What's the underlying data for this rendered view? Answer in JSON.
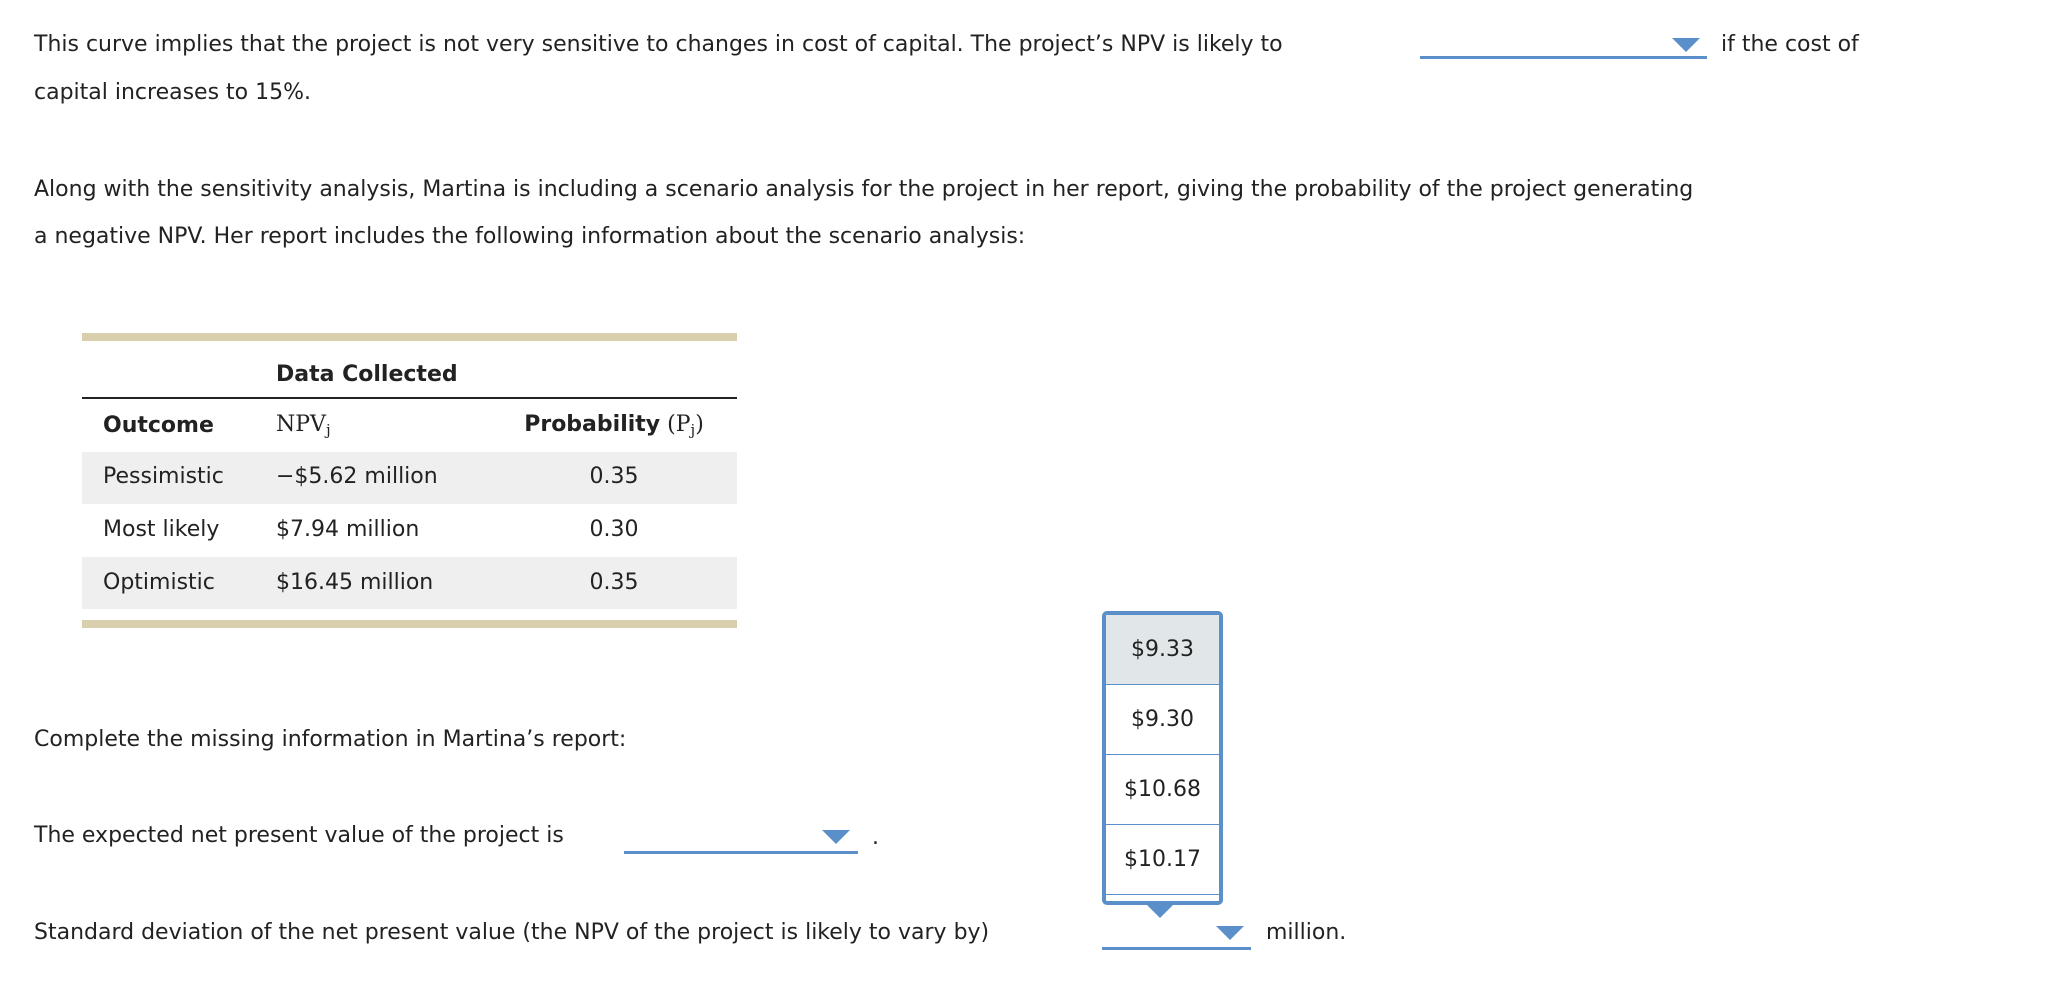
{
  "paragraph1": {
    "before": "This curve implies that the project is not very sensitive to changes in cost of capital. The project’s NPV is likely to",
    "after_line1": "if the cost of",
    "after_line2": "capital increases to 15%."
  },
  "paragraph2": {
    "lines": [
      "Along with the sensitivity analysis, Martina is including a scenario analysis for the project in her report, giving the probability of the project generating",
      "a negative NPV. Her report includes the following information about the scenario analysis:"
    ]
  },
  "table": {
    "group_header": "Data Collected",
    "headers": {
      "outcome": "Outcome",
      "npv": "NPV",
      "npv_sub": "j",
      "probability": "Probability",
      "prob_symbol": "(P",
      "prob_sub": "j",
      "prob_close": ")"
    },
    "rows": [
      [
        "Pessimistic",
        "−$5.62 million",
        "0.35"
      ],
      [
        "Most likely",
        "$7.94 million",
        "0.30"
      ],
      [
        "Optimistic",
        "$16.45 million",
        "0.35"
      ]
    ]
  },
  "prompt": "Complete the missing information in Martina’s report:",
  "question1": {
    "text": "The expected net present value of the project is",
    "after": "."
  },
  "question2": {
    "text": "Standard deviation of the net present value (the NPV of the project is likely to vary by)",
    "after": "million."
  },
  "dropdown_options": [
    "$9.33",
    "$9.30",
    "$10.68",
    "$10.17"
  ]
}
